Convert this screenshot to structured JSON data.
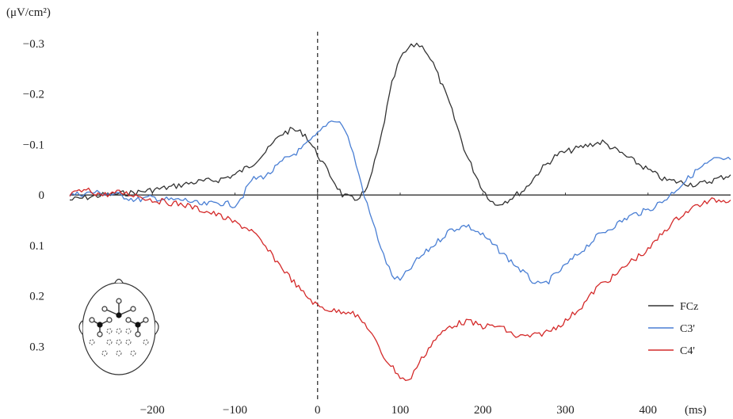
{
  "chart_data": {
    "type": "line",
    "y_unit_label": "(μV/cm²)",
    "x_unit_label": "(ms)",
    "y_inverted": true,
    "xlim": [
      -300,
      500
    ],
    "ylim": [
      -0.3,
      0.37
    ],
    "x_ticks": [
      {
        "v": -200,
        "label": "−200"
      },
      {
        "v": -100,
        "label": "−100"
      },
      {
        "v": 0,
        "label": "0"
      },
      {
        "v": 100,
        "label": "100"
      },
      {
        "v": 200,
        "label": "200"
      },
      {
        "v": 300,
        "label": "300"
      },
      {
        "v": 400,
        "label": "400"
      }
    ],
    "y_ticks": [
      {
        "v": -0.3,
        "label": "−0.3"
      },
      {
        "v": -0.2,
        "label": "−0.2"
      },
      {
        "v": -0.1,
        "label": "−0.1"
      },
      {
        "v": 0,
        "label": "0"
      },
      {
        "v": 0.1,
        "label": "0.1"
      },
      {
        "v": 0.2,
        "label": "0.2"
      },
      {
        "v": 0.3,
        "label": "0.3"
      }
    ],
    "legend_position": "bottom-right",
    "series": [
      {
        "name": "FCz",
        "color": "#333333",
        "x": [
          -300,
          -260,
          -220,
          -200,
          -180,
          -150,
          -120,
          -100,
          -80,
          -60,
          -45,
          -30,
          -15,
          0,
          15,
          30,
          45,
          60,
          75,
          90,
          100,
          110,
          120,
          130,
          140,
          160,
          180,
          200,
          215,
          230,
          250,
          270,
          290,
          310,
          330,
          345,
          360,
          380,
          400,
          420,
          440,
          460,
          480,
          500
        ],
        "y": [
          0.01,
          0,
          -0.005,
          -0.01,
          -0.015,
          -0.025,
          -0.03,
          -0.04,
          -0.06,
          -0.09,
          -0.12,
          -0.13,
          -0.12,
          -0.08,
          -0.04,
          0,
          0.01,
          -0.01,
          -0.1,
          -0.22,
          -0.27,
          -0.29,
          -0.3,
          -0.29,
          -0.26,
          -0.18,
          -0.08,
          -0.01,
          0.02,
          0.01,
          -0.01,
          -0.05,
          -0.08,
          -0.09,
          -0.1,
          -0.105,
          -0.09,
          -0.07,
          -0.05,
          -0.03,
          -0.025,
          -0.02,
          -0.03,
          -0.04
        ]
      },
      {
        "name": "C3'",
        "color": "#4a7fd4",
        "x": [
          -300,
          -270,
          -240,
          -220,
          -200,
          -180,
          -160,
          -140,
          -120,
          -100,
          -90,
          -80,
          -60,
          -40,
          -20,
          0,
          10,
          20,
          30,
          40,
          50,
          60,
          70,
          80,
          90,
          100,
          110,
          120,
          140,
          160,
          180,
          200,
          220,
          240,
          260,
          270,
          280,
          300,
          320,
          340,
          360,
          380,
          400,
          420,
          440,
          460,
          480,
          500
        ],
        "y": [
          0,
          -0.005,
          0,
          0.01,
          0.005,
          0.01,
          0.01,
          0.02,
          0.015,
          0.02,
          0,
          -0.03,
          -0.04,
          -0.07,
          -0.09,
          -0.12,
          -0.14,
          -0.15,
          -0.14,
          -0.1,
          -0.04,
          0.02,
          0.07,
          0.12,
          0.16,
          0.17,
          0.15,
          0.13,
          0.1,
          0.07,
          0.06,
          0.08,
          0.11,
          0.14,
          0.17,
          0.18,
          0.17,
          0.14,
          0.11,
          0.08,
          0.06,
          0.04,
          0.03,
          0.01,
          -0.02,
          -0.05,
          -0.07,
          -0.07
        ]
      },
      {
        "name": "C4'",
        "color": "#d42a2a",
        "x": [
          -300,
          -280,
          -260,
          -240,
          -220,
          -200,
          -180,
          -160,
          -140,
          -120,
          -100,
          -80,
          -60,
          -40,
          -20,
          0,
          20,
          40,
          60,
          80,
          100,
          110,
          120,
          140,
          160,
          180,
          200,
          220,
          240,
          260,
          280,
          300,
          320,
          340,
          360,
          380,
          400,
          420,
          440,
          460,
          480,
          500
        ],
        "y": [
          0,
          -0.01,
          0,
          -0.005,
          0,
          0.01,
          0.015,
          0.02,
          0.03,
          0.04,
          0.055,
          0.07,
          0.11,
          0.15,
          0.19,
          0.22,
          0.23,
          0.23,
          0.26,
          0.32,
          0.36,
          0.37,
          0.34,
          0.29,
          0.26,
          0.25,
          0.26,
          0.26,
          0.28,
          0.28,
          0.27,
          0.25,
          0.22,
          0.18,
          0.16,
          0.13,
          0.11,
          0.07,
          0.04,
          0.02,
          0.01,
          0.01
        ]
      }
    ]
  }
}
